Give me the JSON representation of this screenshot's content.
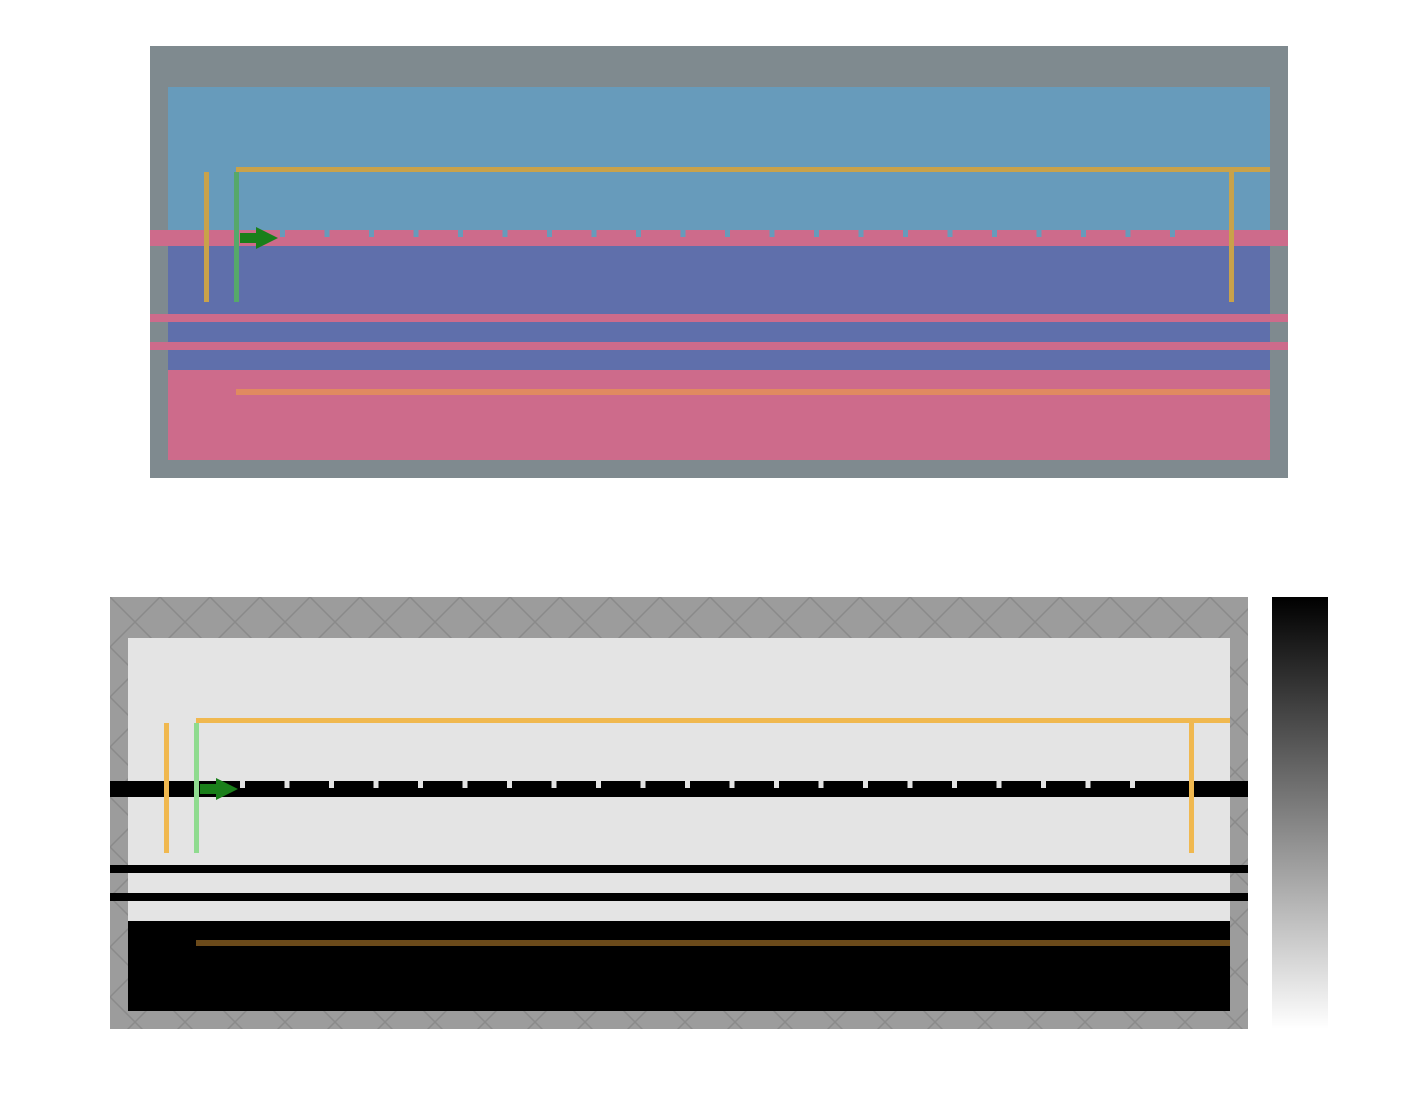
{
  "panels": [
    {
      "id": "top-color-map",
      "colors": {
        "frame": "#7f8a8f",
        "upper_region": "#679bbb",
        "middle_region": "#5f6fab",
        "lower_region": "#cd6b8b",
        "boundary_line": "#cd6b8b",
        "guide_line_orange": "#c9a24a",
        "guide_line_orange_lower": "#e08a60",
        "guide_line_green": "#56a86a",
        "arrow": "#1a7f1a"
      }
    },
    {
      "id": "bottom-gray-map",
      "colors": {
        "frame": "#9c9c9c",
        "frame_hatch": "#8a8a8a",
        "upper_region": "#e4e4e4",
        "boundary_line": "#000000",
        "lower_region": "#000000",
        "guide_line_orange": "#f0b84f",
        "guide_line_orange_lower": "#6b4a1a",
        "guide_line_green": "#8fdb8f",
        "arrow": "#1a7f1a"
      }
    }
  ],
  "colorbar": {
    "gradient_top": "#000000",
    "gradient_bottom": "#ffffff"
  }
}
